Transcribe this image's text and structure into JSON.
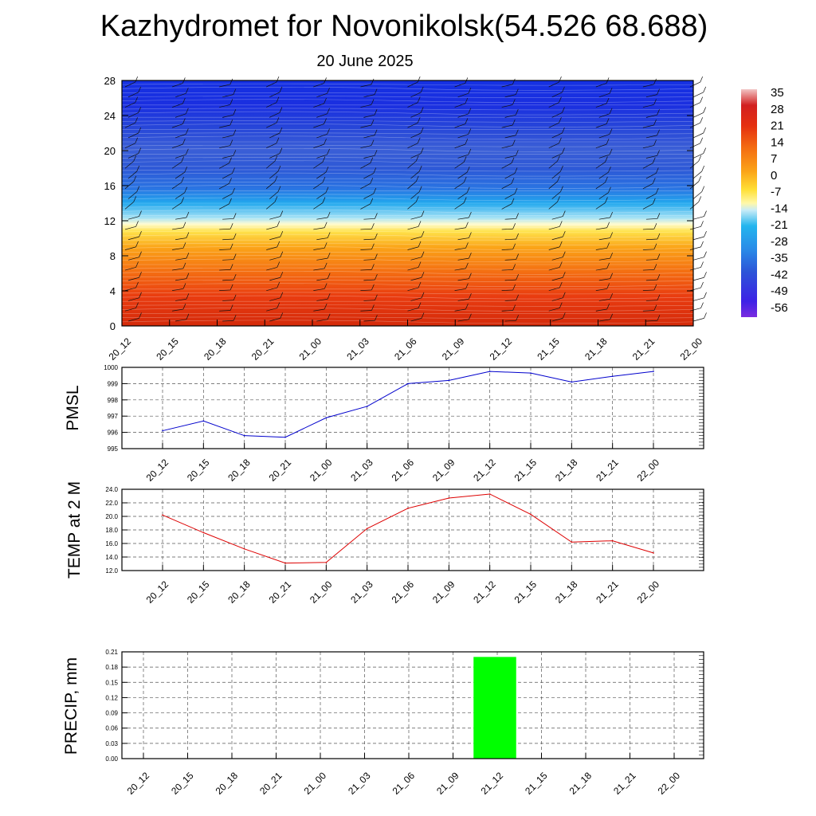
{
  "header": {
    "title": "Kazhydromet for Novonikolsk(54.526 68.688)",
    "subtitle": "20 June 2025"
  },
  "chart_data": [
    {
      "type": "heatmap",
      "description_variable": "temperature contour with wind barbs",
      "x_labels": [
        "20_12",
        "20_15",
        "20_18",
        "20_21",
        "21_00",
        "21_03",
        "21_06",
        "21_09",
        "21_12",
        "21_15",
        "21_18",
        "21_21",
        "22_00"
      ],
      "y_ticks": [
        0,
        4,
        8,
        12,
        16,
        20,
        24,
        28
      ],
      "ylim": [
        0,
        28
      ],
      "colorbar_labels": [
        "35",
        "28",
        "21",
        "14",
        "7",
        "0",
        "-7",
        "-14",
        "-21",
        "-28",
        "-35",
        "-42",
        "-49",
        "-56"
      ],
      "colorbar_range": [
        -63,
        42
      ]
    },
    {
      "type": "line",
      "ylabel": "PMSL",
      "categories": [
        "20_12",
        "20_15",
        "20_18",
        "20_21",
        "21_00",
        "21_03",
        "21_06",
        "21_09",
        "21_12",
        "21_15",
        "21_18",
        "21_21",
        "22_00"
      ],
      "values": [
        996.1,
        996.7,
        995.8,
        995.7,
        996.9,
        997.6,
        999.0,
        999.2,
        999.75,
        999.65,
        999.1,
        999.45,
        999.75
      ],
      "ylim": [
        995,
        1000
      ],
      "y_ticks": [
        "995",
        "996",
        "997",
        "998",
        "999",
        "1000"
      ],
      "color": "#0000cc"
    },
    {
      "type": "line",
      "ylabel": "TEMP at 2 M",
      "categories": [
        "20_12",
        "20_15",
        "20_18",
        "20_21",
        "21_00",
        "21_03",
        "21_06",
        "21_09",
        "21_12",
        "21_15",
        "21_18",
        "21_21",
        "22_00"
      ],
      "values": [
        20.2,
        17.6,
        15.2,
        13.1,
        13.2,
        18.2,
        21.2,
        22.7,
        23.3,
        20.3,
        16.2,
        16.4,
        14.6
      ],
      "ylim": [
        12,
        24
      ],
      "y_ticks": [
        "12.0",
        "14.0",
        "16.0",
        "18.0",
        "20.0",
        "22.0",
        "24.0"
      ],
      "color": "#dd0000"
    },
    {
      "type": "bar",
      "ylabel": "PRECIP, mm",
      "categories": [
        "20_12",
        "20_15",
        "20_18",
        "20_21",
        "21_00",
        "21_03",
        "21_06",
        "21_09",
        "21_12",
        "21_15",
        "21_18",
        "21_21",
        "22_00"
      ],
      "values": [
        0,
        0,
        0,
        0,
        0,
        0,
        0,
        0,
        0.2,
        0,
        0,
        0,
        0
      ],
      "ylim": [
        0,
        0.21
      ],
      "y_ticks": [
        "0.00",
        "0.03",
        "0.06",
        "0.09",
        "0.12",
        "0.15",
        "0.18",
        "0.21"
      ],
      "color": "#00ff00"
    }
  ]
}
